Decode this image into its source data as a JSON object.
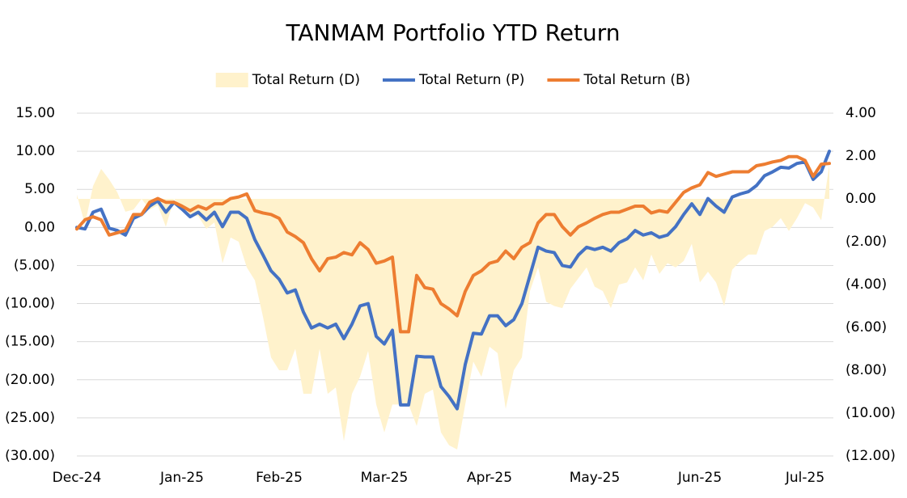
{
  "chart_data": {
    "type": "line",
    "title": "TANMAM Portfolio YTD Return",
    "categories": [
      "Dec-24",
      null,
      null,
      null,
      null,
      null,
      null,
      null,
      null,
      null,
      null,
      null,
      null,
      "Jan-25",
      null,
      null,
      null,
      null,
      null,
      null,
      null,
      null,
      null,
      null,
      null,
      "Feb-25",
      null,
      null,
      null,
      null,
      null,
      null,
      null,
      null,
      null,
      null,
      null,
      null,
      "Mar-25",
      null,
      null,
      null,
      null,
      null,
      null,
      null,
      null,
      null,
      null,
      null,
      null,
      "Apr-25",
      null,
      null,
      null,
      null,
      null,
      null,
      null,
      null,
      null,
      null,
      null,
      null,
      "May-25",
      null,
      null,
      null,
      null,
      null,
      null,
      null,
      null,
      null,
      null,
      null,
      null,
      "Jun-25",
      null,
      null,
      null,
      null,
      null,
      null,
      null,
      null,
      null,
      null,
      null,
      null,
      "Jul-25",
      null,
      null,
      null
    ],
    "series": [
      {
        "name": "Total Return (D)",
        "type": "area",
        "axis": "y2",
        "color": "#fff2cc",
        "values": [
          0.2,
          -1.2,
          0.6,
          1.4,
          0.9,
          0.3,
          -0.6,
          -0.5,
          0.0,
          -0.5,
          -0.3,
          -1.3,
          0.0,
          -0.4,
          -0.8,
          -0.8,
          -1.4,
          -1.1,
          -3.0,
          -1.8,
          -2.0,
          -3.2,
          -3.8,
          -5.5,
          -7.4,
          -8.0,
          -8.0,
          -7.0,
          -9.1,
          -9.1,
          -7.0,
          -9.1,
          -8.8,
          -11.3,
          -9.1,
          -8.3,
          -7.1,
          -9.6,
          -10.9,
          -9.6,
          -9.6,
          -9.6,
          -10.6,
          -9.1,
          -8.9,
          -10.9,
          -11.5,
          -11.7,
          -9.6,
          -7.6,
          -8.3,
          -6.9,
          -7.2,
          -9.8,
          -8.0,
          -7.4,
          -4.3,
          -3.2,
          -4.8,
          -5.0,
          -5.1,
          -4.2,
          -3.7,
          -3.2,
          -4.1,
          -4.3,
          -5.1,
          -4.0,
          -3.9,
          -3.2,
          -3.8,
          -2.6,
          -3.5,
          -3.0,
          -3.2,
          -2.9,
          -2.1,
          -3.9,
          -3.4,
          -3.9,
          -5.0,
          -3.3,
          -2.9,
          -2.6,
          -2.6,
          -1.5,
          -1.3,
          -0.9,
          -1.5,
          -0.9,
          -0.2,
          -0.4,
          -1.0,
          1.6
        ]
      },
      {
        "name": "Total Return (P)",
        "type": "line",
        "axis": "y",
        "color": "#4472c4",
        "values": [
          0.0,
          -0.2,
          2.0,
          2.4,
          -0.1,
          -0.4,
          -1.0,
          1.2,
          1.7,
          2.8,
          3.5,
          2.0,
          3.3,
          2.4,
          1.4,
          2.0,
          1.0,
          2.0,
          0.1,
          2.0,
          2.0,
          1.2,
          -1.6,
          -3.6,
          -5.7,
          -6.8,
          -8.6,
          -8.2,
          -11.1,
          -13.2,
          -12.7,
          -13.2,
          -12.7,
          -14.6,
          -12.7,
          -10.3,
          -10.0,
          -14.3,
          -15.3,
          -13.5,
          -23.3,
          -23.3,
          -16.9,
          -17.0,
          -17.0,
          -20.9,
          -22.2,
          -23.8,
          -18.0,
          -13.9,
          -14.0,
          -11.6,
          -11.6,
          -12.9,
          -12.1,
          -10.0,
          -6.3,
          -2.6,
          -3.1,
          -3.3,
          -5.0,
          -5.2,
          -3.6,
          -2.6,
          -2.9,
          -2.6,
          -3.1,
          -2.0,
          -1.5,
          -0.4,
          -1.0,
          -0.7,
          -1.3,
          -1.0,
          0.1,
          1.7,
          3.1,
          1.7,
          3.8,
          2.8,
          2.0,
          4.0,
          4.4,
          4.7,
          5.5,
          6.8,
          7.3,
          7.9,
          7.8,
          8.4,
          8.6,
          6.3,
          7.3,
          10.0
        ]
      },
      {
        "name": "Total Return (B)",
        "type": "line",
        "axis": "y",
        "color": "#ed7d31",
        "values": [
          -0.2,
          1.0,
          1.4,
          1.0,
          -1.0,
          -0.7,
          -0.4,
          1.7,
          1.7,
          3.3,
          3.8,
          3.3,
          3.3,
          2.8,
          2.2,
          2.8,
          2.4,
          3.1,
          3.1,
          3.8,
          4.0,
          4.4,
          2.2,
          1.9,
          1.7,
          1.2,
          -0.6,
          -1.2,
          -2.0,
          -4.1,
          -5.7,
          -4.1,
          -3.9,
          -3.3,
          -3.6,
          -2.0,
          -2.9,
          -4.7,
          -4.4,
          -3.9,
          -13.7,
          -13.7,
          -6.3,
          -7.9,
          -8.1,
          -10.0,
          -10.7,
          -11.6,
          -8.4,
          -6.3,
          -5.7,
          -4.7,
          -4.4,
          -3.1,
          -4.1,
          -2.6,
          -2.0,
          0.6,
          1.7,
          1.7,
          0.1,
          -1.0,
          0.1,
          0.6,
          1.2,
          1.7,
          2.0,
          2.0,
          2.4,
          2.8,
          2.8,
          1.9,
          2.2,
          2.0,
          3.3,
          4.6,
          5.2,
          5.6,
          7.2,
          6.7,
          7.0,
          7.3,
          7.3,
          7.3,
          8.1,
          8.3,
          8.6,
          8.8,
          9.3,
          9.3,
          8.8,
          6.7,
          8.3,
          8.4
        ]
      }
    ],
    "ylim": [
      -30,
      15
    ],
    "yticks": [
      {
        "value": -30,
        "label": "(30.00)"
      },
      {
        "value": -25,
        "label": "(25.00)"
      },
      {
        "value": -20,
        "label": "(20.00)"
      },
      {
        "value": -15,
        "label": "(15.00)"
      },
      {
        "value": -10,
        "label": "(10.00)"
      },
      {
        "value": -5,
        "label": "(5.00)"
      },
      {
        "value": 0,
        "label": "0.00"
      },
      {
        "value": 5,
        "label": "5.00"
      },
      {
        "value": 10,
        "label": "10.00"
      },
      {
        "value": 15,
        "label": "15.00"
      }
    ],
    "y2lim": [
      -12,
      4
    ],
    "y2ticks": [
      {
        "value": -12,
        "label": "(12.00)"
      },
      {
        "value": -10,
        "label": "(10.00)"
      },
      {
        "value": -8,
        "label": "(8.00)"
      },
      {
        "value": -6,
        "label": "(6.00)"
      },
      {
        "value": -4,
        "label": "(4.00)"
      },
      {
        "value": -2,
        "label": "(2.00)"
      },
      {
        "value": 0,
        "label": "0.00"
      },
      {
        "value": 2,
        "label": "2.00"
      },
      {
        "value": 4,
        "label": "4.00"
      }
    ],
    "negative_label_color": "#ff0000",
    "grid": true,
    "legend": "top"
  }
}
